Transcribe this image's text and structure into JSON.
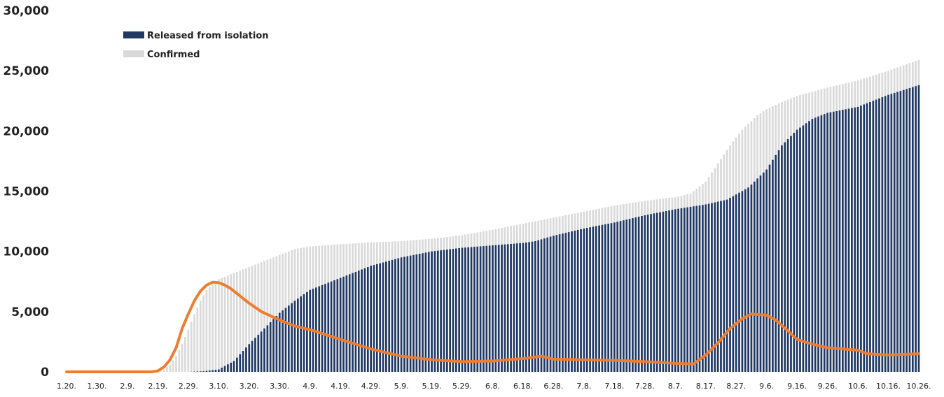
{
  "chart_data": {
    "type": "bar",
    "title": "",
    "title_partially_visible": true,
    "xlabel": "",
    "ylabel": "",
    "ylim": [
      0,
      30000
    ],
    "y_ticks": [
      "0",
      "5,000",
      "10,000",
      "15,000",
      "20,000",
      "25,000",
      "30,000"
    ],
    "x_tick_labels": [
      "1.20.",
      "1.30.",
      "2.9.",
      "2.19.",
      "2.29.",
      "3.10.",
      "3.20.",
      "3.30.",
      "4.9.",
      "4.19.",
      "4.29.",
      "5.9.",
      "5.19.",
      "5.29.",
      "6.8.",
      "6.18.",
      "6.28.",
      "7.8.",
      "7.18.",
      "7.28.",
      "8.7.",
      "8.17.",
      "8.27.",
      "9.6.",
      "9.16.",
      "9.26.",
      "10.6.",
      "10.16.",
      "10.26."
    ],
    "grid": false,
    "legend_position": "top-left",
    "series": [
      {
        "name": "Released from isolation",
        "kind": "bar",
        "color": "#1f3864",
        "keypoints": [
          {
            "x": "1.20.",
            "y": 0
          },
          {
            "x": "2.29.",
            "y": 0
          },
          {
            "x": "3.5.",
            "y": 50
          },
          {
            "x": "3.10.",
            "y": 200
          },
          {
            "x": "3.15.",
            "y": 900
          },
          {
            "x": "3.20.",
            "y": 2300
          },
          {
            "x": "3.25.",
            "y": 3600
          },
          {
            "x": "3.30.",
            "y": 4900
          },
          {
            "x": "4.4.",
            "y": 5900
          },
          {
            "x": "4.9.",
            "y": 6800
          },
          {
            "x": "4.19.",
            "y": 7800
          },
          {
            "x": "4.29.",
            "y": 8800
          },
          {
            "x": "5.9.",
            "y": 9500
          },
          {
            "x": "5.19.",
            "y": 10000
          },
          {
            "x": "5.29.",
            "y": 10300
          },
          {
            "x": "6.8.",
            "y": 10500
          },
          {
            "x": "6.18.",
            "y": 10700
          },
          {
            "x": "6.22.",
            "y": 10850
          },
          {
            "x": "6.28.",
            "y": 11300
          },
          {
            "x": "7.8.",
            "y": 11900
          },
          {
            "x": "7.18.",
            "y": 12400
          },
          {
            "x": "7.28.",
            "y": 13000
          },
          {
            "x": "8.7.",
            "y": 13500
          },
          {
            "x": "8.17.",
            "y": 13900
          },
          {
            "x": "8.24.",
            "y": 14300
          },
          {
            "x": "8.31.",
            "y": 15300
          },
          {
            "x": "9.6.",
            "y": 16800
          },
          {
            "x": "9.11.",
            "y": 18800
          },
          {
            "x": "9.16.",
            "y": 20100
          },
          {
            "x": "9.21.",
            "y": 21000
          },
          {
            "x": "9.26.",
            "y": 21500
          },
          {
            "x": "10.6.",
            "y": 22000
          },
          {
            "x": "10.16.",
            "y": 23000
          },
          {
            "x": "10.26.",
            "y": 23800
          }
        ]
      },
      {
        "name": "Confirmed",
        "kind": "bar",
        "color": "#d9d9d9",
        "keypoints": [
          {
            "x": "1.20.",
            "y": 0
          },
          {
            "x": "2.17.",
            "y": 30
          },
          {
            "x": "2.19.",
            "y": 50
          },
          {
            "x": "2.21.",
            "y": 200
          },
          {
            "x": "2.23.",
            "y": 600
          },
          {
            "x": "2.25.",
            "y": 1300
          },
          {
            "x": "2.27.",
            "y": 2300
          },
          {
            "x": "2.29.",
            "y": 3500
          },
          {
            "x": "3.2.",
            "y": 4800
          },
          {
            "x": "3.4.",
            "y": 5900
          },
          {
            "x": "3.6.",
            "y": 6800
          },
          {
            "x": "3.8.",
            "y": 7300
          },
          {
            "x": "3.10.",
            "y": 7700
          },
          {
            "x": "3.15.",
            "y": 8200
          },
          {
            "x": "3.20.",
            "y": 8700
          },
          {
            "x": "3.25.",
            "y": 9200
          },
          {
            "x": "3.30.",
            "y": 9700
          },
          {
            "x": "4.4.",
            "y": 10200
          },
          {
            "x": "4.9.",
            "y": 10400
          },
          {
            "x": "4.19.",
            "y": 10600
          },
          {
            "x": "4.29.",
            "y": 10750
          },
          {
            "x": "5.9.",
            "y": 10850
          },
          {
            "x": "5.19.",
            "y": 11050
          },
          {
            "x": "5.29.",
            "y": 11350
          },
          {
            "x": "6.8.",
            "y": 11800
          },
          {
            "x": "6.18.",
            "y": 12300
          },
          {
            "x": "6.28.",
            "y": 12800
          },
          {
            "x": "7.8.",
            "y": 13300
          },
          {
            "x": "7.18.",
            "y": 13800
          },
          {
            "x": "7.28.",
            "y": 14200
          },
          {
            "x": "8.7.",
            "y": 14500
          },
          {
            "x": "8.12.",
            "y": 14800
          },
          {
            "x": "8.17.",
            "y": 15800
          },
          {
            "x": "8.21.",
            "y": 17300
          },
          {
            "x": "8.25.",
            "y": 18800
          },
          {
            "x": "8.29.",
            "y": 20100
          },
          {
            "x": "9.3.",
            "y": 21300
          },
          {
            "x": "9.6.",
            "y": 21800
          },
          {
            "x": "9.11.",
            "y": 22400
          },
          {
            "x": "9.16.",
            "y": 22900
          },
          {
            "x": "9.26.",
            "y": 23600
          },
          {
            "x": "10.6.",
            "y": 24200
          },
          {
            "x": "10.16.",
            "y": 25000
          },
          {
            "x": "10.26.",
            "y": 25900
          }
        ]
      },
      {
        "name": "",
        "kind": "line",
        "color": "#ed7d31",
        "keypoints": [
          {
            "x": "1.20.",
            "y": 0
          },
          {
            "x": "2.17.",
            "y": 0
          },
          {
            "x": "2.19.",
            "y": 80
          },
          {
            "x": "2.21.",
            "y": 400
          },
          {
            "x": "2.23.",
            "y": 1000
          },
          {
            "x": "2.25.",
            "y": 2000
          },
          {
            "x": "2.27.",
            "y": 3600
          },
          {
            "x": "2.29.",
            "y": 4800
          },
          {
            "x": "3.2.",
            "y": 5900
          },
          {
            "x": "3.4.",
            "y": 6700
          },
          {
            "x": "3.6.",
            "y": 7200
          },
          {
            "x": "3.8.",
            "y": 7450
          },
          {
            "x": "3.10.",
            "y": 7400
          },
          {
            "x": "3.12.",
            "y": 7200
          },
          {
            "x": "3.14.",
            "y": 6900
          },
          {
            "x": "3.17.",
            "y": 6300
          },
          {
            "x": "3.20.",
            "y": 5700
          },
          {
            "x": "3.24.",
            "y": 5000
          },
          {
            "x": "3.30.",
            "y": 4300
          },
          {
            "x": "4.4.",
            "y": 3800
          },
          {
            "x": "4.9.",
            "y": 3500
          },
          {
            "x": "4.19.",
            "y": 2700
          },
          {
            "x": "4.29.",
            "y": 1900
          },
          {
            "x": "5.9.",
            "y": 1300
          },
          {
            "x": "5.19.",
            "y": 1000
          },
          {
            "x": "5.29.",
            "y": 850
          },
          {
            "x": "6.8.",
            "y": 900
          },
          {
            "x": "6.18.",
            "y": 1100
          },
          {
            "x": "6.24.",
            "y": 1300
          },
          {
            "x": "6.28.",
            "y": 1050
          },
          {
            "x": "7.8.",
            "y": 1000
          },
          {
            "x": "7.18.",
            "y": 950
          },
          {
            "x": "7.28.",
            "y": 850
          },
          {
            "x": "8.7.",
            "y": 700
          },
          {
            "x": "8.13.",
            "y": 650
          },
          {
            "x": "8.17.",
            "y": 1400
          },
          {
            "x": "8.21.",
            "y": 2400
          },
          {
            "x": "8.25.",
            "y": 3600
          },
          {
            "x": "8.29.",
            "y": 4400
          },
          {
            "x": "9.1.",
            "y": 4800
          },
          {
            "x": "9.6.",
            "y": 4700
          },
          {
            "x": "9.9.",
            "y": 4300
          },
          {
            "x": "9.13.",
            "y": 3400
          },
          {
            "x": "9.16.",
            "y": 2700
          },
          {
            "x": "9.21.",
            "y": 2300
          },
          {
            "x": "9.26.",
            "y": 2000
          },
          {
            "x": "10.6.",
            "y": 1800
          },
          {
            "x": "10.9.",
            "y": 1500
          },
          {
            "x": "10.16.",
            "y": 1400
          },
          {
            "x": "10.26.",
            "y": 1500
          }
        ]
      }
    ]
  }
}
